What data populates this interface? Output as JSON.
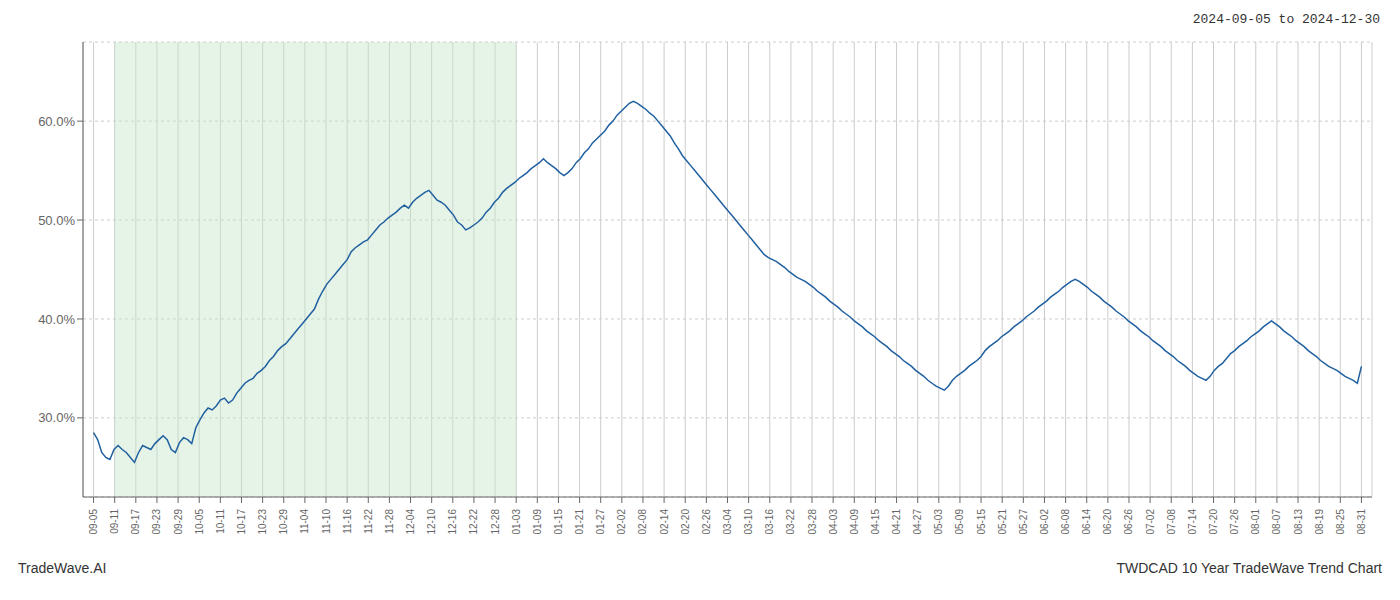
{
  "chart_data": {
    "type": "line",
    "title": "2024-09-05 to 2024-12-30",
    "annotations": [
      "TradeWave.AI",
      "TWDCAD 10 Year TradeWave Trend Chart"
    ],
    "color": "#2060a0",
    "grid": true,
    "shaded_range": {
      "x": [
        5.166666666666667,
        103.33333333333333
      ],
      "color": "#c8e6c9"
    },
    "xlim": [
      -2.5833333333333335,
      312.5833333333333
    ],
    "xticks": [
      {
        "value": 0,
        "label": "09-05"
      },
      {
        "value": 5.166666666666667,
        "label": "09-11"
      },
      {
        "value": 10.333333333333334,
        "label": "09-17"
      },
      {
        "value": 15.5,
        "label": "09-23"
      },
      {
        "value": 20.666666666666668,
        "label": "09-29"
      },
      {
        "value": 25.833333333333332,
        "label": "10-05"
      },
      {
        "value": 31,
        "label": "10-11"
      },
      {
        "value": 36.166666666666664,
        "label": "10-17"
      },
      {
        "value": 41.333333333333336,
        "label": "10-23"
      },
      {
        "value": 46.5,
        "label": "10-29"
      },
      {
        "value": 51.666666666666664,
        "label": "11-04"
      },
      {
        "value": 56.833333333333336,
        "label": "11-10"
      },
      {
        "value": 62,
        "label": "11-16"
      },
      {
        "value": 67.16666666666667,
        "label": "11-22"
      },
      {
        "value": 72.33333333333333,
        "label": "11-28"
      },
      {
        "value": 77.5,
        "label": "12-04"
      },
      {
        "value": 82.66666666666667,
        "label": "12-10"
      },
      {
        "value": 87.83333333333333,
        "label": "12-16"
      },
      {
        "value": 93,
        "label": "12-22"
      },
      {
        "value": 98.16666666666667,
        "label": "12-28"
      },
      {
        "value": 103.33333333333333,
        "label": "01-03"
      },
      {
        "value": 108.5,
        "label": "01-09"
      },
      {
        "value": 113.66666666666667,
        "label": "01-15"
      },
      {
        "value": 118.83333333333333,
        "label": "01-21"
      },
      {
        "value": 124,
        "label": "01-27"
      },
      {
        "value": 129.16666666666666,
        "label": "02-02"
      },
      {
        "value": 134.33333333333334,
        "label": "02-08"
      },
      {
        "value": 139.5,
        "label": "02-14"
      },
      {
        "value": 144.66666666666666,
        "label": "02-20"
      },
      {
        "value": 149.83333333333334,
        "label": "02-26"
      },
      {
        "value": 155,
        "label": "03-04"
      },
      {
        "value": 160.16666666666666,
        "label": "03-10"
      },
      {
        "value": 165.33333333333334,
        "label": "03-16"
      },
      {
        "value": 170.5,
        "label": "03-22"
      },
      {
        "value": 175.66666666666666,
        "label": "03-28"
      },
      {
        "value": 180.83333333333334,
        "label": "04-03"
      },
      {
        "value": 186,
        "label": "04-09"
      },
      {
        "value": 191.16666666666666,
        "label": "04-15"
      },
      {
        "value": 196.33333333333334,
        "label": "04-21"
      },
      {
        "value": 201.5,
        "label": "04-27"
      },
      {
        "value": 206.66666666666666,
        "label": "05-03"
      },
      {
        "value": 211.83333333333334,
        "label": "05-09"
      },
      {
        "value": 217,
        "label": "05-15"
      },
      {
        "value": 222.16666666666666,
        "label": "05-21"
      },
      {
        "value": 227.33333333333334,
        "label": "05-27"
      },
      {
        "value": 232.5,
        "label": "06-02"
      },
      {
        "value": 237.66666666666666,
        "label": "06-08"
      },
      {
        "value": 242.83333333333334,
        "label": "06-14"
      },
      {
        "value": 248,
        "label": "06-20"
      },
      {
        "value": 253.16666666666666,
        "label": "06-26"
      },
      {
        "value": 258.3333333333333,
        "label": "07-02"
      },
      {
        "value": 263.5,
        "label": "07-08"
      },
      {
        "value": 268.6666666666667,
        "label": "07-14"
      },
      {
        "value": 273.8333333333333,
        "label": "07-20"
      },
      {
        "value": 279,
        "label": "07-26"
      },
      {
        "value": 284.1666666666667,
        "label": "08-01"
      },
      {
        "value": 289.3333333333333,
        "label": "08-07"
      },
      {
        "value": 294.5,
        "label": "08-13"
      },
      {
        "value": 299.6666666666667,
        "label": "08-19"
      },
      {
        "value": 304.8333333333333,
        "label": "08-25"
      },
      {
        "value": 310,
        "label": "08-31"
      }
    ],
    "ylim": [
      0.22,
      0.68
    ],
    "yticks": [
      {
        "value": 0.3,
        "label": "30.0%"
      },
      {
        "value": 0.4,
        "label": "40.0%"
      },
      {
        "value": 0.5,
        "label": "50.0%"
      },
      {
        "value": 0.6,
        "label": "60.0%"
      }
    ],
    "values": [
      0.285,
      0.278,
      0.265,
      0.26,
      0.258,
      0.268,
      0.272,
      0.268,
      0.265,
      0.26,
      0.255,
      0.265,
      0.272,
      0.27,
      0.268,
      0.274,
      0.278,
      0.282,
      0.278,
      0.268,
      0.265,
      0.275,
      0.28,
      0.278,
      0.274,
      0.29,
      0.298,
      0.305,
      0.31,
      0.308,
      0.312,
      0.318,
      0.32,
      0.315,
      0.318,
      0.325,
      0.33,
      0.335,
      0.338,
      0.34,
      0.345,
      0.348,
      0.352,
      0.358,
      0.362,
      0.368,
      0.372,
      0.375,
      0.38,
      0.385,
      0.39,
      0.395,
      0.4,
      0.405,
      0.41,
      0.42,
      0.428,
      0.435,
      0.44,
      0.445,
      0.45,
      0.455,
      0.46,
      0.468,
      0.472,
      0.475,
      0.478,
      0.48,
      0.485,
      0.49,
      0.495,
      0.498,
      0.502,
      0.505,
      0.508,
      0.512,
      0.515,
      0.512,
      0.518,
      0.522,
      0.525,
      0.528,
      0.53,
      0.525,
      0.52,
      0.518,
      0.515,
      0.51,
      0.505,
      0.498,
      0.495,
      0.49,
      0.492,
      0.495,
      0.498,
      0.502,
      0.508,
      0.512,
      0.518,
      0.522,
      0.528,
      0.532,
      0.535,
      0.538,
      0.542,
      0.545,
      0.548,
      0.552,
      0.555,
      0.558,
      0.562,
      0.558,
      0.555,
      0.552,
      0.548,
      0.545,
      0.548,
      0.552,
      0.558,
      0.562,
      0.568,
      0.572,
      0.578,
      0.582,
      0.586,
      0.59,
      0.596,
      0.6,
      0.606,
      0.61,
      0.614,
      0.618,
      0.62,
      0.618,
      0.615,
      0.612,
      0.608,
      0.605,
      0.6,
      0.595,
      0.59,
      0.585,
      0.578,
      0.572,
      0.565,
      0.56,
      0.555,
      0.55,
      0.545,
      0.54,
      0.535,
      0.53,
      0.525,
      0.52,
      0.515,
      0.51,
      0.505,
      0.5,
      0.495,
      0.49,
      0.485,
      0.48,
      0.475,
      0.47,
      0.465,
      0.462,
      0.46,
      0.458,
      0.455,
      0.452,
      0.448,
      0.445,
      0.442,
      0.44,
      0.438,
      0.435,
      0.432,
      0.428,
      0.425,
      0.422,
      0.418,
      0.415,
      0.412,
      0.408,
      0.405,
      0.402,
      0.398,
      0.395,
      0.392,
      0.388,
      0.385,
      0.382,
      0.378,
      0.375,
      0.372,
      0.368,
      0.365,
      0.362,
      0.358,
      0.355,
      0.352,
      0.348,
      0.345,
      0.342,
      0.338,
      0.335,
      0.332,
      0.33,
      0.328,
      0.332,
      0.338,
      0.342,
      0.345,
      0.348,
      0.352,
      0.355,
      0.358,
      0.362,
      0.368,
      0.372,
      0.375,
      0.378,
      0.382,
      0.385,
      0.388,
      0.392,
      0.395,
      0.398,
      0.402,
      0.405,
      0.408,
      0.412,
      0.415,
      0.418,
      0.422,
      0.425,
      0.428,
      0.432,
      0.435,
      0.438,
      0.44,
      0.438,
      0.435,
      0.432,
      0.428,
      0.425,
      0.422,
      0.418,
      0.415,
      0.412,
      0.408,
      0.405,
      0.402,
      0.398,
      0.395,
      0.392,
      0.388,
      0.385,
      0.382,
      0.378,
      0.375,
      0.372,
      0.368,
      0.365,
      0.362,
      0.358,
      0.355,
      0.352,
      0.348,
      0.345,
      0.342,
      0.34,
      0.338,
      0.342,
      0.348,
      0.352,
      0.355,
      0.36,
      0.365,
      0.368,
      0.372,
      0.375,
      0.378,
      0.382,
      0.385,
      0.388,
      0.392,
      0.395,
      0.398,
      0.395,
      0.392,
      0.388,
      0.385,
      0.382,
      0.378,
      0.375,
      0.372,
      0.368,
      0.365,
      0.362,
      0.358,
      0.355,
      0.352,
      0.35,
      0.348,
      0.345,
      0.342,
      0.34,
      0.338,
      0.335,
      0.352
    ]
  }
}
